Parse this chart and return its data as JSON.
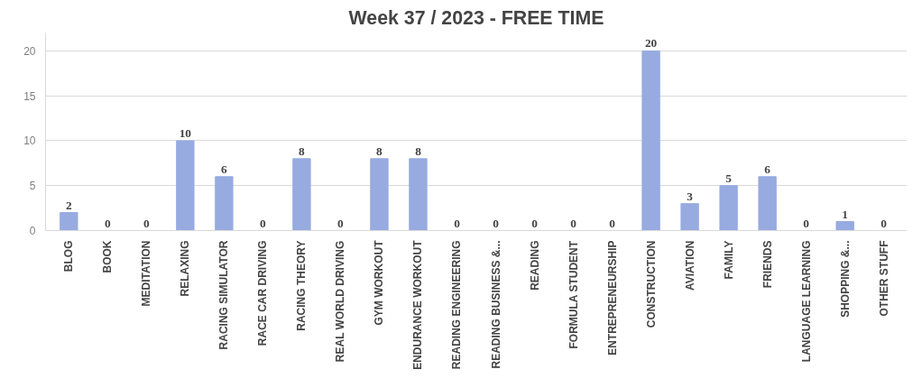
{
  "chart_data": {
    "type": "bar",
    "title": "Week 37 / 2023 - FREE TIME",
    "categories": [
      "BLOG",
      "BOOK",
      "MEDITATION",
      "RELAXING",
      "RACING SIMULATOR",
      "RACE CAR DRIVING",
      "RACING THEORY",
      "REAL WORLD DRIVING",
      "GYM WORKOUT",
      "ENDURANCE WORKOUT",
      "READING ENGINEERING",
      "READING BUSINESS &...",
      "READING",
      "FORMULA STUDENT",
      "ENTREPRENEURSHIP",
      "CONSTRUCTION",
      "AVIATION",
      "FAMILY",
      "FRIENDS",
      "LANGUAGE LEARNING",
      "SHOPPING &...",
      "OTHER STUFF"
    ],
    "values": [
      2,
      0,
      0,
      10,
      6,
      0,
      8,
      0,
      8,
      8,
      0,
      0,
      0,
      0,
      0,
      20,
      3,
      5,
      6,
      0,
      1,
      0
    ],
    "color": "#97abe0",
    "ylim": [
      0,
      22
    ],
    "yticks": [
      0,
      5,
      10,
      15,
      20
    ],
    "grid": "y",
    "data_labels": true
  }
}
